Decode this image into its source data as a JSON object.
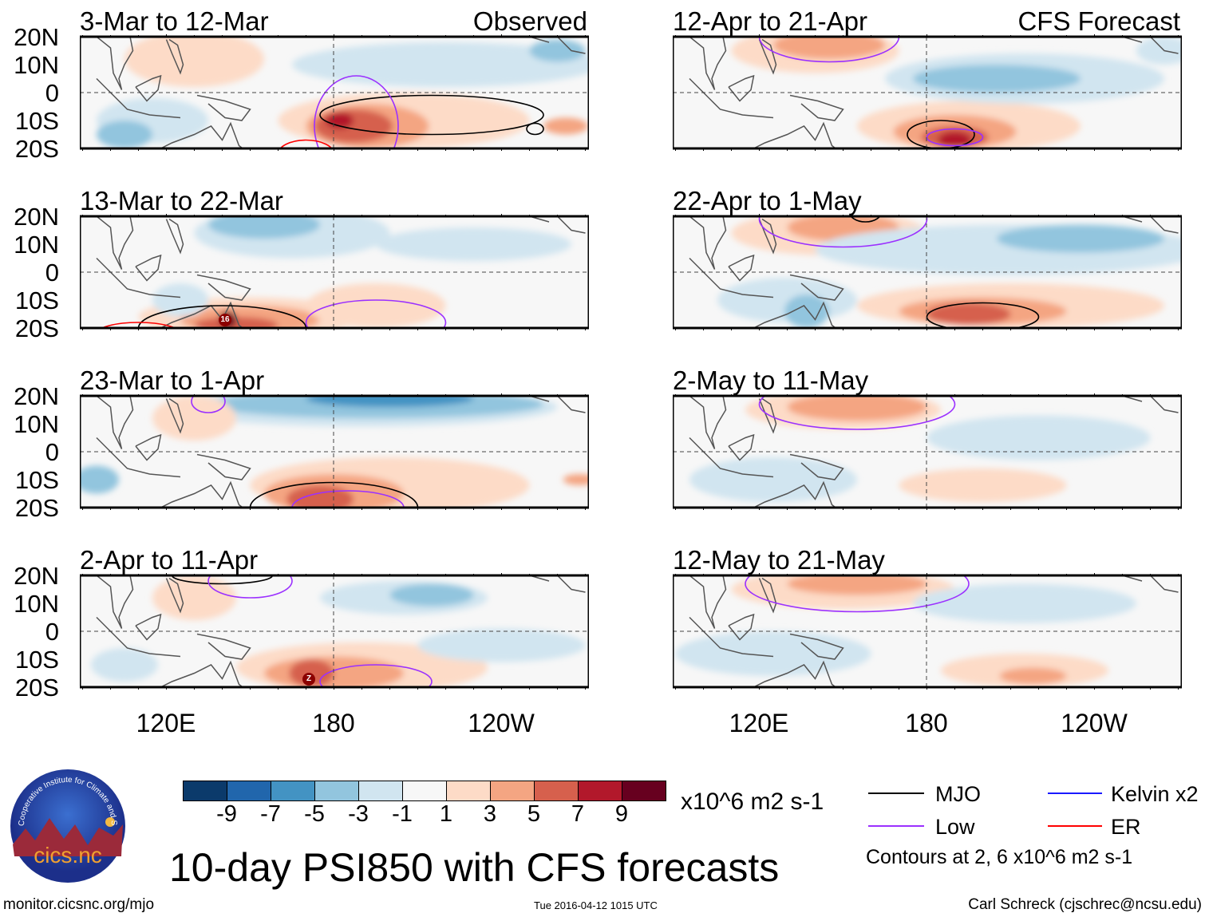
{
  "panels": [
    {
      "title": "3-Mar to 12-Mar",
      "tag": "Observed"
    },
    {
      "title": "13-Mar to 22-Mar",
      "tag": ""
    },
    {
      "title": "23-Mar to 1-Apr",
      "tag": ""
    },
    {
      "title": "2-Apr to 11-Apr",
      "tag": ""
    },
    {
      "title": "12-Apr to 21-Apr",
      "tag": "CFS Forecast"
    },
    {
      "title": "22-Apr to 1-May",
      "tag": ""
    },
    {
      "title": "2-May to 11-May",
      "tag": ""
    },
    {
      "title": "12-May to 21-May",
      "tag": ""
    }
  ],
  "lat_labels": [
    "20N",
    "10N",
    "0",
    "10S",
    "20S"
  ],
  "lon_labels": [
    "120E",
    "180",
    "120W"
  ],
  "markers": {
    "p2": "16",
    "p4": "Z"
  },
  "colorbar": {
    "colors": [
      "#0b3a6b",
      "#2166ac",
      "#4393c3",
      "#92c5de",
      "#d1e5f0",
      "#f7f7f7",
      "#fddbc7",
      "#f4a582",
      "#d6604d",
      "#b2182b",
      "#67001f"
    ],
    "labels": [
      "-9",
      "-7",
      "-5",
      "-3",
      "-1",
      "1",
      "3",
      "5",
      "7",
      "9"
    ],
    "units": "x10^6 m2 s-1"
  },
  "title": "10-day PSI850 with CFS forecasts",
  "legend": {
    "items": [
      {
        "label": "MJO",
        "color": "#000000"
      },
      {
        "label": "Kelvin x2",
        "color": "#1a1aff"
      },
      {
        "label": "Low",
        "color": "#9b30ff"
      },
      {
        "label": "ER",
        "color": "#ff0000"
      }
    ],
    "note": "Contours at 2, 6 x10^6 m2 s-1"
  },
  "logo_text": "cics.nc",
  "logo_ring_text": "Cooperative Institute for Climate and Satellites",
  "footer": {
    "url": "monitor.cicsnc.org/mjo",
    "timestamp": "Tue 2016-04-12 1015 UTC",
    "author": "Carl Schreck (cjschrec@ncsu.edu)"
  }
}
